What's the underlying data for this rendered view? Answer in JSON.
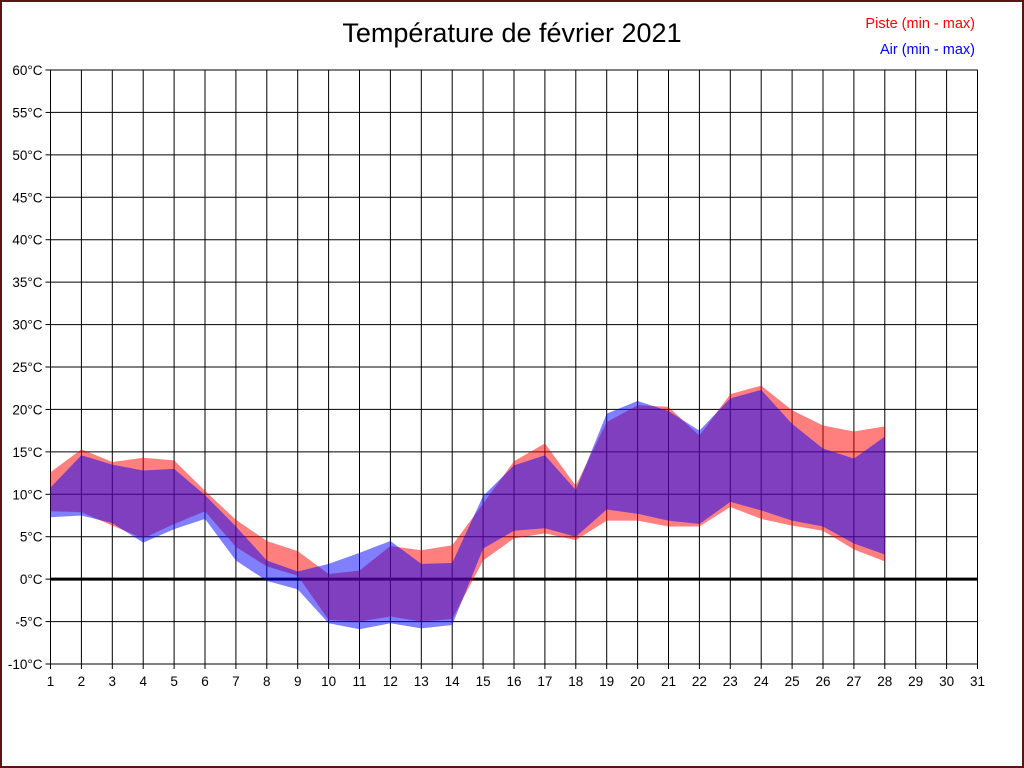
{
  "page": {
    "border_color": "#5a1414",
    "background_color": "#ffffff"
  },
  "title": "Température de février 2021",
  "legend": {
    "position": "top-right",
    "items": [
      {
        "label": "Piste (min - max)",
        "color": "#ff0000"
      },
      {
        "label": "Air (min - max)",
        "color": "#0000ff"
      }
    ]
  },
  "chart_data": {
    "type": "area",
    "title": "Température de février 2021",
    "xlabel": "",
    "ylabel": "",
    "xlim": [
      1,
      31
    ],
    "ylim": [
      -10,
      60
    ],
    "grid": true,
    "grid_color": "#000000",
    "zero_line_value": 0,
    "x_ticks": [
      1,
      2,
      3,
      4,
      5,
      6,
      7,
      8,
      9,
      10,
      11,
      12,
      13,
      14,
      15,
      16,
      17,
      18,
      19,
      20,
      21,
      22,
      23,
      24,
      25,
      26,
      27,
      28,
      29,
      30,
      31
    ],
    "y_ticks": [
      "60°C",
      "55°C",
      "50°C",
      "45°C",
      "40°C",
      "35°C",
      "30°C",
      "25°C",
      "20°C",
      "15°C",
      "10°C",
      "5°C",
      "0°C",
      "-5°C",
      "-10°C"
    ],
    "y_tick_values": [
      60,
      55,
      50,
      45,
      40,
      35,
      30,
      25,
      20,
      15,
      10,
      5,
      0,
      -5,
      -10
    ],
    "x": [
      1,
      2,
      3,
      4,
      5,
      6,
      7,
      8,
      9,
      10,
      11,
      12,
      13,
      14,
      15,
      16,
      17,
      18,
      19,
      20,
      21,
      22,
      23,
      24,
      25,
      26,
      27,
      28
    ],
    "series": [
      {
        "name": "Piste (min - max)",
        "color": "#ff0000",
        "opacity": 0.5,
        "min": [
          8.0,
          7.9,
          6.3,
          4.8,
          6.5,
          8.0,
          3.8,
          1.5,
          0.4,
          -4.8,
          -5.0,
          -4.4,
          -5.0,
          -4.7,
          2.2,
          4.8,
          5.4,
          4.6,
          6.9,
          6.9,
          6.2,
          6.2,
          8.5,
          7.1,
          6.3,
          5.7,
          3.5,
          2.1
        ],
        "max": [
          12.6,
          15.3,
          13.8,
          14.3,
          14.0,
          10.4,
          7.0,
          4.5,
          3.3,
          0.6,
          1.0,
          3.9,
          3.4,
          4.0,
          8.9,
          13.9,
          16.0,
          11.0,
          18.5,
          20.5,
          20.3,
          16.9,
          21.8,
          22.8,
          19.9,
          18.1,
          17.4,
          18.0
        ]
      },
      {
        "name": "Air (min - max)",
        "color": "#0000ff",
        "opacity": 0.5,
        "min": [
          7.3,
          7.5,
          6.6,
          4.3,
          5.9,
          7.1,
          2.2,
          -0.2,
          -1.2,
          -5.2,
          -5.9,
          -5.2,
          -5.8,
          -5.4,
          3.6,
          5.7,
          6.0,
          5.0,
          8.2,
          7.7,
          6.9,
          6.5,
          9.1,
          8.1,
          6.9,
          6.2,
          4.2,
          2.9
        ],
        "max": [
          10.8,
          14.6,
          13.5,
          12.8,
          13.0,
          9.9,
          6.2,
          2.2,
          0.9,
          1.8,
          3.1,
          4.5,
          1.8,
          1.9,
          9.8,
          13.4,
          14.6,
          10.5,
          19.5,
          21.0,
          19.8,
          17.5,
          21.3,
          22.3,
          18.3,
          15.4,
          14.2,
          16.8
        ]
      }
    ]
  }
}
